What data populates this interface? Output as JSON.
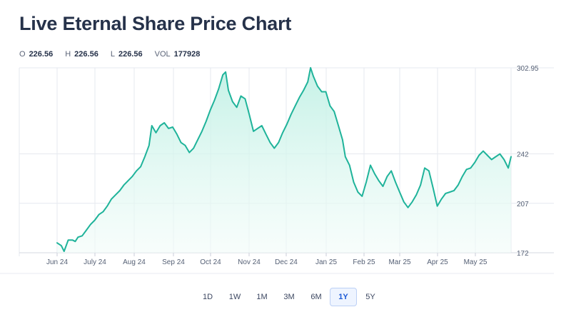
{
  "page": {
    "title": "Live Eternal Share Price Chart"
  },
  "ohlc": [
    {
      "key": "O",
      "value": "226.56"
    },
    {
      "key": "H",
      "value": "226.56"
    },
    {
      "key": "L",
      "value": "226.56"
    },
    {
      "key": "VOL",
      "value": "177928"
    }
  ],
  "range_buttons": [
    {
      "label": "1D",
      "active": false
    },
    {
      "label": "1W",
      "active": false
    },
    {
      "label": "1M",
      "active": false
    },
    {
      "label": "3M",
      "active": false
    },
    {
      "label": "6M",
      "active": false
    },
    {
      "label": "1Y",
      "active": true
    },
    {
      "label": "5Y",
      "active": false
    }
  ],
  "colors": {
    "line": "#1fb39a",
    "fill_top": "#bff0e4",
    "fill_bottom": "#f2fcf9",
    "grid": "#e6e9ef",
    "active_range": "#1e5bd6"
  },
  "chart_data": {
    "type": "area",
    "title": "",
    "xlabel": "",
    "ylabel": "",
    "x_ticks": [
      "Jun 24",
      "July 24",
      "Aug 24",
      "Sep 24",
      "Oct 24",
      "Nov 24",
      "Dec 24",
      "Jan 25",
      "Feb 25",
      "Mar 25",
      "Apr 25",
      "May 25"
    ],
    "y_ticks": [
      "302.95",
      "242",
      "207",
      "172"
    ],
    "ylim": [
      172,
      302.95
    ],
    "grid": true,
    "legend": "none",
    "series": [
      {
        "values": [
          [
            0,
            179
          ],
          [
            3,
            177
          ],
          [
            5,
            173
          ],
          [
            8,
            181
          ],
          [
            11,
            181
          ],
          [
            13,
            180
          ],
          [
            15,
            183
          ],
          [
            18,
            184
          ],
          [
            21,
            188
          ],
          [
            24,
            192
          ],
          [
            27,
            195
          ],
          [
            30,
            199
          ],
          [
            33,
            201
          ],
          [
            36,
            205
          ],
          [
            39,
            210
          ],
          [
            42,
            213
          ],
          [
            45,
            216
          ],
          [
            48,
            220
          ],
          [
            51,
            223
          ],
          [
            54,
            226
          ],
          [
            57,
            230
          ],
          [
            60,
            233
          ],
          [
            63,
            240
          ],
          [
            66,
            248
          ],
          [
            68,
            262
          ],
          [
            71,
            257
          ],
          [
            74,
            262
          ],
          [
            77,
            264
          ],
          [
            80,
            260
          ],
          [
            83,
            261
          ],
          [
            86,
            256
          ],
          [
            89,
            250
          ],
          [
            92,
            248
          ],
          [
            95,
            243
          ],
          [
            98,
            246
          ],
          [
            101,
            252
          ],
          [
            104,
            258
          ],
          [
            107,
            265
          ],
          [
            110,
            273
          ],
          [
            113,
            280
          ],
          [
            116,
            288
          ],
          [
            119,
            298
          ],
          [
            121,
            300
          ],
          [
            123,
            287
          ],
          [
            126,
            279
          ],
          [
            129,
            275
          ],
          [
            132,
            283
          ],
          [
            135,
            281
          ],
          [
            138,
            270
          ],
          [
            141,
            258
          ],
          [
            144,
            260
          ],
          [
            147,
            262
          ],
          [
            150,
            256
          ],
          [
            153,
            250
          ],
          [
            156,
            246
          ],
          [
            159,
            250
          ],
          [
            162,
            257
          ],
          [
            165,
            263
          ],
          [
            168,
            270
          ],
          [
            171,
            276
          ],
          [
            174,
            282
          ],
          [
            177,
            287
          ],
          [
            180,
            293
          ],
          [
            182,
            303
          ],
          [
            184,
            297
          ],
          [
            187,
            290
          ],
          [
            190,
            286
          ],
          [
            193,
            286
          ],
          [
            196,
            276
          ],
          [
            199,
            272
          ],
          [
            202,
            262
          ],
          [
            205,
            252
          ],
          [
            207,
            240
          ],
          [
            210,
            234
          ],
          [
            213,
            222
          ],
          [
            216,
            215
          ],
          [
            219,
            212
          ],
          [
            222,
            222
          ],
          [
            225,
            234
          ],
          [
            228,
            228
          ],
          [
            231,
            223
          ],
          [
            234,
            219
          ],
          [
            237,
            226
          ],
          [
            240,
            230
          ],
          [
            243,
            222
          ],
          [
            246,
            215
          ],
          [
            249,
            208
          ],
          [
            252,
            204
          ],
          [
            255,
            208
          ],
          [
            258,
            213
          ],
          [
            261,
            220
          ],
          [
            264,
            232
          ],
          [
            267,
            230
          ],
          [
            270,
            218
          ],
          [
            273,
            205
          ],
          [
            276,
            210
          ],
          [
            279,
            214
          ],
          [
            282,
            215
          ],
          [
            285,
            216
          ],
          [
            288,
            220
          ],
          [
            291,
            226
          ],
          [
            294,
            231
          ],
          [
            297,
            232
          ],
          [
            300,
            236
          ],
          [
            303,
            241
          ],
          [
            306,
            244
          ],
          [
            309,
            241
          ],
          [
            312,
            238
          ],
          [
            315,
            240
          ],
          [
            318,
            242
          ],
          [
            321,
            238
          ],
          [
            324,
            232
          ],
          [
            326,
            240
          ]
        ]
      }
    ]
  }
}
